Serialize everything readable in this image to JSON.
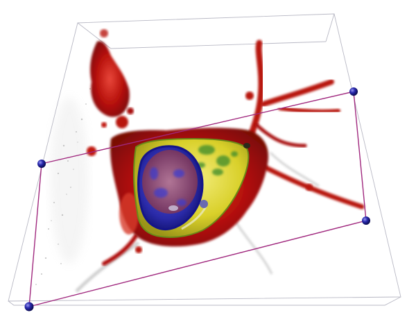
{
  "scene": {
    "type": "3d-volume-rendering",
    "subject": "cell",
    "background_color": "#ffffff",
    "bounding_box_color": "#b8b8c4",
    "clip_plane_color": "#a0287e",
    "handle_color": "#1c1c8c",
    "membrane_color": "#b8120c",
    "cytoplasm_color": "#d9d02a",
    "organelle_color": "#3a8a2a",
    "nucleus_color": "#2a2aa8",
    "nucleolus_color": "#8a3a52"
  },
  "clip_plane": {
    "handles": [
      {
        "name": "handle-top-left"
      },
      {
        "name": "handle-top-right"
      },
      {
        "name": "handle-bottom-right"
      },
      {
        "name": "handle-bottom-left"
      }
    ]
  }
}
